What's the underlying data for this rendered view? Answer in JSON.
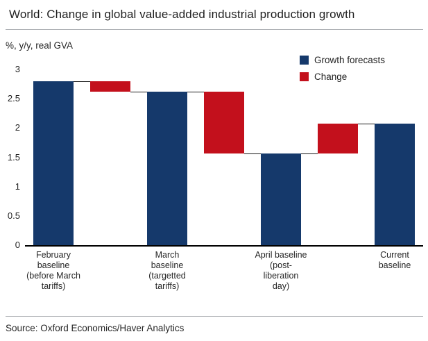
{
  "header": {
    "title": "World: Change in global value-added industrial production growth"
  },
  "axis_note": "%, y/y, real GVA",
  "legend": {
    "items": [
      {
        "label": "Growth forecasts",
        "color": "#15396b"
      },
      {
        "label": "Change",
        "color": "#c3101c"
      }
    ]
  },
  "footer": {
    "source": "Source: Oxford Economics/Haver Analytics"
  },
  "chart_data": {
    "type": "bar",
    "subtype": "waterfall",
    "title": "World: Change in global value-added industrial production growth",
    "ylabel": "%, y/y, real GVA",
    "ylim": [
      0,
      3
    ],
    "yticks": [
      0,
      0.5,
      1,
      1.5,
      2,
      2.5,
      3
    ],
    "grid": false,
    "legend_position": "top-right",
    "categories": [
      "February baseline (before March tariffs)",
      "March baseline (targetted tariffs)",
      "April baseline (post-liberation day)",
      "Current baseline"
    ],
    "category_lines": [
      [
        "February",
        "baseline",
        "(before March",
        "tariffs)"
      ],
      [
        "March",
        "baseline",
        "(targetted",
        "tariffs)"
      ],
      [
        "April baseline",
        "(post-",
        "liberation",
        "day)"
      ],
      [
        "Current",
        "baseline"
      ]
    ],
    "series": [
      {
        "name": "Growth forecasts",
        "type": "bar",
        "color": "#15396b",
        "values": [
          2.8,
          2.62,
          1.57,
          2.08
        ]
      },
      {
        "name": "Change",
        "type": "bar",
        "color": "#c3101c",
        "segments": [
          {
            "from": 2.8,
            "to": 2.62
          },
          {
            "from": 2.62,
            "to": 1.57
          },
          {
            "from": 1.57,
            "to": 2.08
          }
        ]
      }
    ],
    "source": "Source: Oxford Economics/Haver Analytics"
  }
}
